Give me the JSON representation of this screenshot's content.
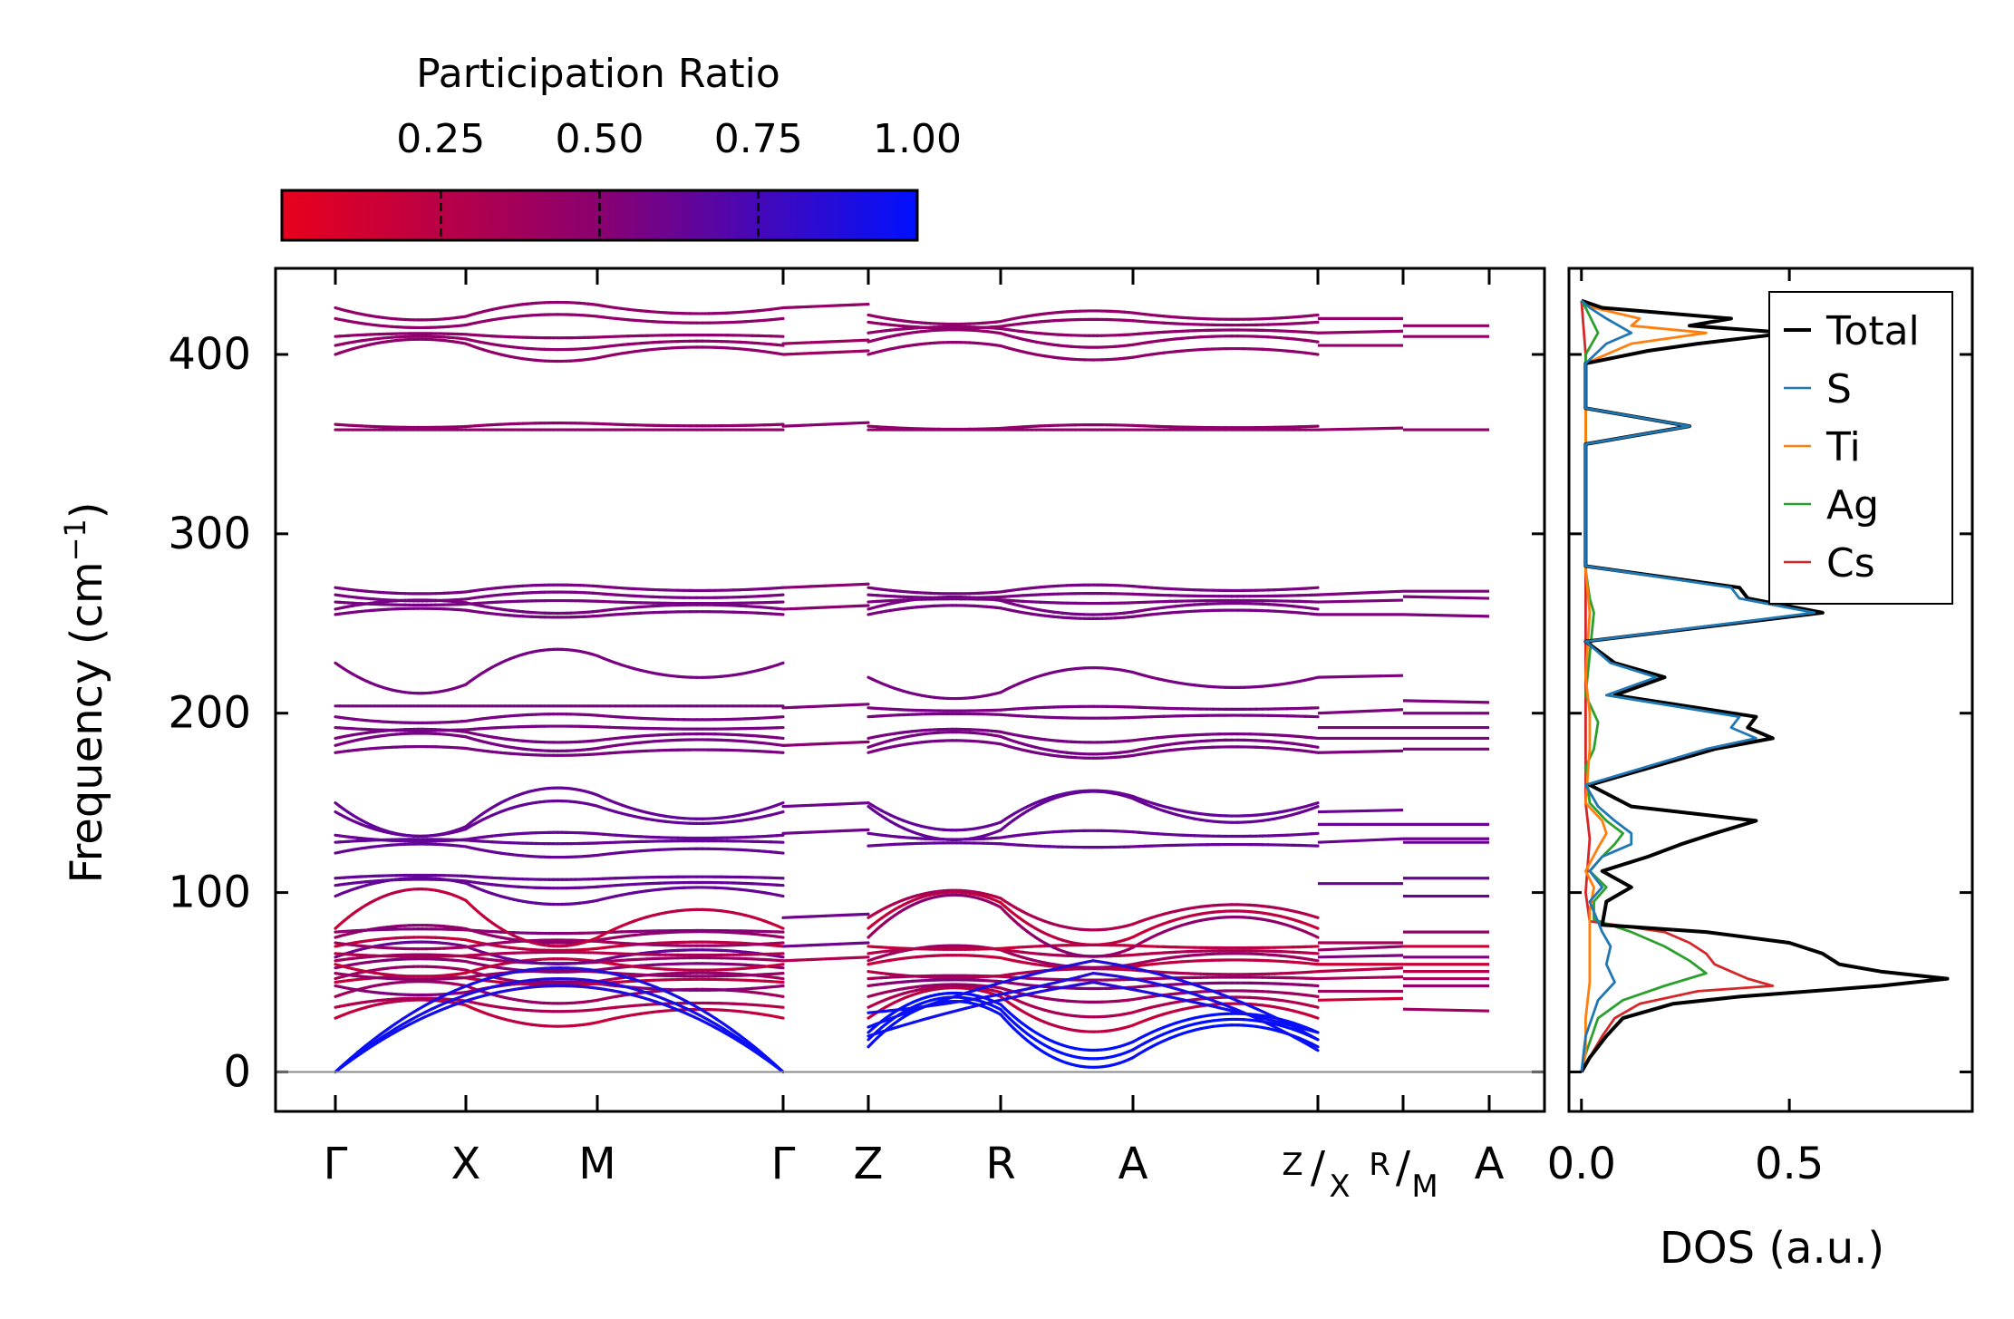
{
  "chart_data": [
    {
      "type": "line",
      "panel": "phonon band structure",
      "ylabel_main": "Frequency (cm",
      "ylabel_sup": "−1",
      "ylabel_end": ")",
      "ylim": [
        -22,
        448
      ],
      "yticks": [
        "0",
        "100",
        "200",
        "300",
        "400"
      ],
      "ytick_values": [
        0,
        100,
        200,
        300,
        400
      ],
      "zero_line": true,
      "kpoints": [
        "Γ",
        "X",
        "M",
        "Γ",
        "Z",
        "R",
        "A",
        "A"
      ],
      "kpoint_positions": [
        0,
        0.72,
        1.44,
        2.47,
        2.94,
        3.67,
        4.4,
        6.37
      ],
      "special_labels": {
        "zx_top": "Z",
        "zx_bot": "X",
        "rm_top": "R",
        "rm_bot": "M"
      },
      "special_positions": [
        5.42,
        5.89
      ],
      "path_segments": [
        {
          "from": "Γ",
          "to": "Γ",
          "start": 0,
          "end": 2.47
        },
        {
          "from": "Z",
          "to": "Z",
          "start": 2.94,
          "end": 5.42
        },
        {
          "from": "X",
          "to": "R",
          "start": 5.42,
          "end": 5.89
        },
        {
          "from": "M",
          "to": "A",
          "start": 5.89,
          "end": 6.37
        }
      ],
      "bands_loop1": {
        "optical_levels": [
          30,
          36,
          42,
          48,
          50,
          52,
          55,
          58,
          60,
          62,
          64,
          66,
          70,
          72,
          75,
          78,
          80,
          98,
          104,
          108,
          122,
          128,
          132,
          145,
          150,
          178,
          182,
          186,
          192,
          198,
          204,
          228,
          255,
          258,
          262,
          266,
          270,
          358,
          361,
          400,
          405,
          410,
          420,
          426
        ],
        "optical_mid_offsets": [
          12,
          6,
          10,
          -6,
          4,
          8,
          -4,
          6,
          -8,
          4,
          10,
          -2,
          6,
          -4,
          8,
          2,
          26,
          12,
          4,
          2,
          6,
          2,
          -4,
          -16,
          -22,
          4,
          8,
          6,
          -2,
          -4,
          0,
          -20,
          4,
          6,
          -2,
          -4,
          -4,
          0,
          -2,
          10,
          6,
          2,
          -6,
          -8
        ],
        "acoustic": [
          {
            "start": 0,
            "mid": 52,
            "end": 0
          },
          {
            "start": 0,
            "mid": 58,
            "end": 0
          },
          {
            "start": 0,
            "mid": 48,
            "end": 0
          }
        ]
      },
      "bands_loop2": {
        "optical_levels": [
          14,
          18,
          22,
          30,
          36,
          42,
          48,
          52,
          56,
          60,
          62,
          66,
          70,
          75,
          80,
          86,
          126,
          133,
          148,
          150,
          178,
          181,
          186,
          198,
          203,
          220,
          255,
          258,
          262,
          266,
          270,
          358,
          360,
          400,
          407,
          412,
          418,
          422
        ],
        "optical_mid_offsets": [
          30,
          28,
          26,
          20,
          14,
          8,
          4,
          2,
          -4,
          6,
          10,
          4,
          -2,
          28,
          24,
          18,
          2,
          -4,
          -22,
          -18,
          8,
          10,
          6,
          2,
          -2,
          -14,
          6,
          8,
          2,
          -2,
          -4,
          0,
          -2,
          8,
          8,
          4,
          -4,
          -6
        ],
        "acoustic": [
          {
            "start": 33,
            "mid": 55,
            "end": 12
          },
          {
            "start": 25,
            "mid": 62,
            "end": 18
          },
          {
            "start": 20,
            "mid": 50,
            "end": 22
          }
        ]
      },
      "bands_zx_r": [
        40,
        45,
        52,
        56,
        60,
        64,
        68,
        72,
        105,
        128,
        138,
        145,
        178,
        186,
        192,
        200,
        220,
        255,
        262,
        266,
        358,
        405,
        412,
        420
      ],
      "bands_r_m": [
        35,
        48,
        52,
        56,
        60,
        64,
        70,
        78,
        98,
        108,
        128,
        130,
        138,
        180,
        186,
        192,
        200,
        207,
        255,
        265,
        268,
        358,
        410,
        416
      ],
      "colorbar": {
        "label": "Participation Ratio",
        "range": [
          0.0,
          1.0
        ],
        "ticks": [
          "0.25",
          "0.50",
          "0.75",
          "1.00"
        ],
        "tick_values": [
          0.25,
          0.5,
          0.75,
          1.0
        ],
        "color_low": "#e8001c",
        "color_mid": "#8a0070",
        "color_high": "#0010ff"
      }
    },
    {
      "type": "line",
      "panel": "density of states",
      "xlabel": "DOS (a.u.)",
      "xticks": [
        "0.0",
        "0.5"
      ],
      "xtick_values": [
        0.0,
        0.5
      ],
      "xlim": [
        -0.03,
        0.94
      ],
      "ylim": [
        -22,
        448
      ],
      "legend_position": "top-right",
      "series": [
        {
          "name": "Total",
          "color": "#000000",
          "peaks": [
            [
              8,
              0.02
            ],
            [
              20,
              0.06
            ],
            [
              30,
              0.1
            ],
            [
              38,
              0.22
            ],
            [
              42,
              0.38
            ],
            [
              48,
              0.72
            ],
            [
              52,
              0.88
            ],
            [
              56,
              0.72
            ],
            [
              60,
              0.62
            ],
            [
              66,
              0.58
            ],
            [
              72,
              0.5
            ],
            [
              78,
              0.3
            ],
            [
              82,
              0.05
            ],
            [
              95,
              0.06
            ],
            [
              103,
              0.12
            ],
            [
              112,
              0.05
            ],
            [
              120,
              0.16
            ],
            [
              127,
              0.24
            ],
            [
              133,
              0.32
            ],
            [
              140,
              0.42
            ],
            [
              148,
              0.12
            ],
            [
              160,
              0.02
            ],
            [
              180,
              0.32
            ],
            [
              186,
              0.46
            ],
            [
              192,
              0.4
            ],
            [
              198,
              0.42
            ],
            [
              210,
              0.08
            ],
            [
              220,
              0.2
            ],
            [
              228,
              0.08
            ],
            [
              240,
              0.01
            ],
            [
              256,
              0.58
            ],
            [
              264,
              0.4
            ],
            [
              270,
              0.38
            ],
            [
              282,
              0.01
            ],
            [
              350,
              0.01
            ],
            [
              360,
              0.26
            ],
            [
              370,
              0.01
            ],
            [
              395,
              0.01
            ],
            [
              402,
              0.16
            ],
            [
              406,
              0.28
            ],
            [
              412,
              0.5
            ],
            [
              416,
              0.26
            ],
            [
              420,
              0.36
            ],
            [
              426,
              0.05
            ]
          ]
        },
        {
          "name": "S",
          "color": "#1f77b4",
          "peaks": [
            [
              20,
              0.01
            ],
            [
              40,
              0.04
            ],
            [
              50,
              0.08
            ],
            [
              60,
              0.06
            ],
            [
              70,
              0.07
            ],
            [
              78,
              0.05
            ],
            [
              95,
              0.02
            ],
            [
              103,
              0.05
            ],
            [
              112,
              0.02
            ],
            [
              120,
              0.05
            ],
            [
              127,
              0.12
            ],
            [
              133,
              0.12
            ],
            [
              140,
              0.08
            ],
            [
              148,
              0.04
            ],
            [
              160,
              0.01
            ],
            [
              180,
              0.3
            ],
            [
              186,
              0.42
            ],
            [
              192,
              0.36
            ],
            [
              198,
              0.38
            ],
            [
              210,
              0.06
            ],
            [
              220,
              0.18
            ],
            [
              228,
              0.07
            ],
            [
              240,
              0.01
            ],
            [
              256,
              0.56
            ],
            [
              264,
              0.38
            ],
            [
              270,
              0.36
            ],
            [
              282,
              0.01
            ],
            [
              350,
              0.01
            ],
            [
              360,
              0.26
            ],
            [
              370,
              0.01
            ],
            [
              395,
              0.01
            ],
            [
              406,
              0.06
            ],
            [
              412,
              0.12
            ],
            [
              420,
              0.06
            ],
            [
              426,
              0.02
            ]
          ]
        },
        {
          "name": "Ti",
          "color": "#ff7f0e",
          "peaks": [
            [
              10,
              0.01
            ],
            [
              30,
              0.01
            ],
            [
              50,
              0.02
            ],
            [
              70,
              0.02
            ],
            [
              90,
              0.02
            ],
            [
              103,
              0.03
            ],
            [
              112,
              0.01
            ],
            [
              125,
              0.04
            ],
            [
              133,
              0.06
            ],
            [
              140,
              0.05
            ],
            [
              150,
              0.01
            ],
            [
              180,
              0.02
            ],
            [
              200,
              0.02
            ],
            [
              220,
              0.01
            ],
            [
              256,
              0.02
            ],
            [
              280,
              0.01
            ],
            [
              360,
              0.01
            ],
            [
              395,
              0.01
            ],
            [
              402,
              0.08
            ],
            [
              406,
              0.12
            ],
            [
              412,
              0.3
            ],
            [
              416,
              0.12
            ],
            [
              420,
              0.14
            ],
            [
              426,
              0.03
            ]
          ]
        },
        {
          "name": "Ag",
          "color": "#2ca02c",
          "peaks": [
            [
              10,
              0.01
            ],
            [
              30,
              0.04
            ],
            [
              40,
              0.1
            ],
            [
              48,
              0.2
            ],
            [
              55,
              0.3
            ],
            [
              62,
              0.26
            ],
            [
              70,
              0.2
            ],
            [
              78,
              0.12
            ],
            [
              85,
              0.03
            ],
            [
              95,
              0.03
            ],
            [
              103,
              0.06
            ],
            [
              112,
              0.02
            ],
            [
              120,
              0.05
            ],
            [
              127,
              0.08
            ],
            [
              133,
              0.1
            ],
            [
              140,
              0.06
            ],
            [
              150,
              0.02
            ],
            [
              170,
              0.01
            ],
            [
              180,
              0.03
            ],
            [
              195,
              0.04
            ],
            [
              210,
              0.01
            ],
            [
              256,
              0.03
            ],
            [
              264,
              0.02
            ],
            [
              280,
              0.01
            ],
            [
              360,
              0.01
            ],
            [
              400,
              0.01
            ],
            [
              412,
              0.04
            ],
            [
              426,
              0.01
            ]
          ]
        },
        {
          "name": "Cs",
          "color": "#d62728",
          "peaks": [
            [
              8,
              0.02
            ],
            [
              20,
              0.05
            ],
            [
              30,
              0.08
            ],
            [
              38,
              0.14
            ],
            [
              45,
              0.28
            ],
            [
              48,
              0.46
            ],
            [
              52,
              0.4
            ],
            [
              56,
              0.36
            ],
            [
              60,
              0.32
            ],
            [
              66,
              0.3
            ],
            [
              72,
              0.26
            ],
            [
              78,
              0.2
            ],
            [
              84,
              0.02
            ],
            [
              100,
              0.01
            ],
            [
              130,
              0.02
            ],
            [
              150,
              0.01
            ],
            [
              180,
              0.01
            ],
            [
              200,
              0.01
            ],
            [
              256,
              0.01
            ],
            [
              400,
              0.01
            ]
          ]
        }
      ]
    }
  ]
}
